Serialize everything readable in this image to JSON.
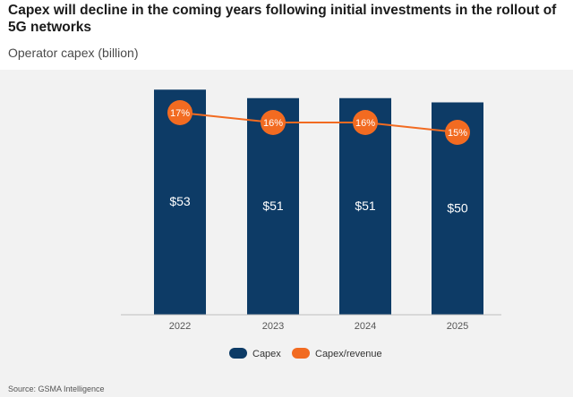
{
  "title": "Capex will decline in the coming years following initial investments in the rollout of 5G networks",
  "subtitle": "Operator capex (billion)",
  "source": "Source: GSMA Intelligence",
  "colors": {
    "capex": "#0d3b66",
    "ratio": "#f26b21",
    "background": "#f2f2f2"
  },
  "chart_data": {
    "type": "bar",
    "categories": [
      "2022",
      "2023",
      "2024",
      "2025"
    ],
    "ylim": [
      0,
      60
    ],
    "series": [
      {
        "name": "Capex",
        "type": "bar",
        "values": [
          53,
          51,
          51,
          50
        ],
        "labels": [
          "$53",
          "$51",
          "$51",
          "$50"
        ]
      },
      {
        "name": "Capex/revenue",
        "type": "line",
        "values": [
          17,
          16,
          16,
          15
        ],
        "labels": [
          "17%",
          "16%",
          "16%",
          "15%"
        ]
      }
    ],
    "legend_position": "bottom",
    "grid": false
  }
}
